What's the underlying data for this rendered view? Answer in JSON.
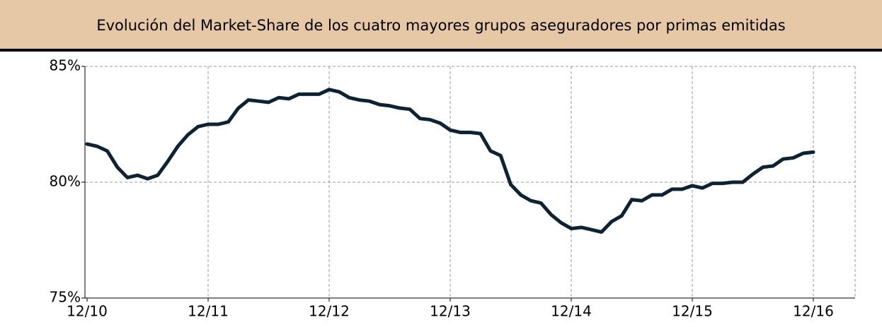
{
  "chart_data": {
    "type": "line",
    "title": "Evolución del Market-Share de los cuatro mayores grupos aseguradores por primas emitidas",
    "categories": [
      "12/10",
      null,
      null,
      null,
      null,
      null,
      null,
      null,
      null,
      null,
      null,
      null,
      "12/11",
      null,
      null,
      null,
      null,
      null,
      null,
      null,
      null,
      null,
      null,
      null,
      "12/12",
      null,
      null,
      null,
      null,
      null,
      null,
      null,
      null,
      null,
      null,
      null,
      "12/13",
      null,
      null,
      null,
      null,
      null,
      null,
      null,
      null,
      null,
      null,
      null,
      "12/14",
      null,
      null,
      null,
      null,
      null,
      null,
      null,
      null,
      null,
      null,
      null,
      "12/15",
      null,
      null,
      null,
      null,
      null,
      null,
      null,
      null,
      null,
      null,
      null,
      "12/16"
    ],
    "values": [
      81.65,
      81.55,
      81.35,
      80.65,
      80.2,
      80.3,
      80.15,
      80.3,
      80.9,
      81.55,
      82.05,
      82.4,
      82.5,
      82.5,
      82.6,
      83.2,
      83.55,
      83.5,
      83.45,
      83.65,
      83.6,
      83.8,
      83.8,
      83.8,
      84.0,
      83.9,
      83.65,
      83.55,
      83.5,
      83.35,
      83.3,
      83.2,
      83.15,
      82.75,
      82.7,
      82.55,
      82.25,
      82.15,
      82.15,
      82.1,
      81.35,
      81.15,
      79.9,
      79.45,
      79.2,
      79.1,
      78.6,
      78.25,
      78.0,
      78.05,
      77.95,
      77.85,
      78.3,
      78.55,
      79.25,
      79.2,
      79.45,
      79.45,
      79.7,
      79.7,
      79.85,
      79.75,
      79.95,
      79.95,
      80.0,
      80.0,
      80.35,
      80.65,
      80.7,
      81.0,
      81.05,
      81.25,
      81.3
    ],
    "color": "#0d2233",
    "ylim": [
      75,
      85
    ],
    "yticks": [
      {
        "value": 75,
        "label": "75%"
      },
      {
        "value": 80,
        "label": "80%"
      },
      {
        "value": 85,
        "label": "85%"
      }
    ],
    "grid": true
  }
}
